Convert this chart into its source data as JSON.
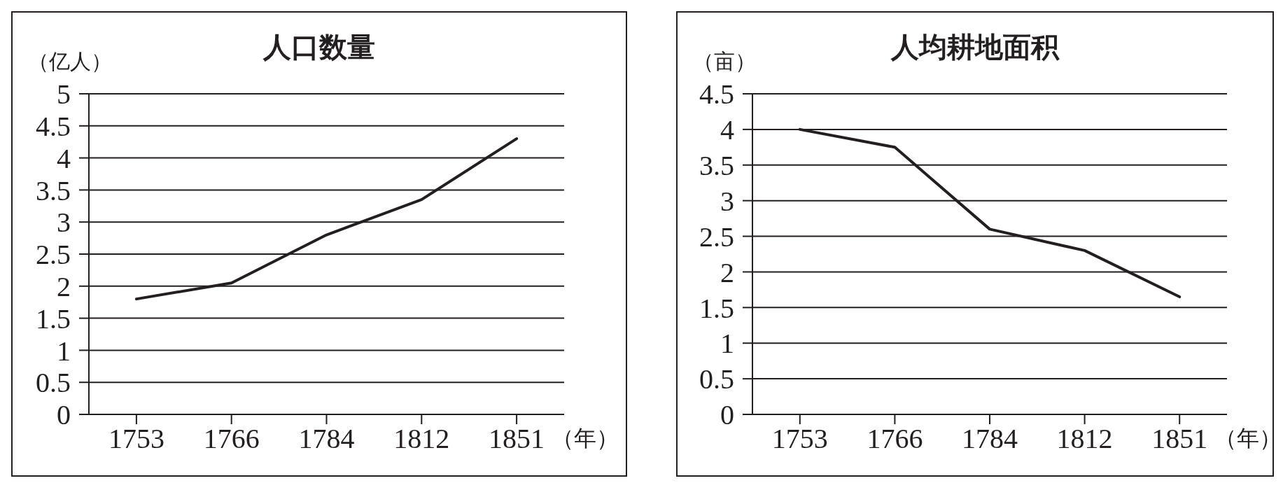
{
  "chart_data": [
    {
      "type": "line",
      "title": "人口数量",
      "ylabel": "（亿人）",
      "xlabel": "（年）",
      "categories": [
        "1753",
        "1766",
        "1784",
        "1812",
        "1851"
      ],
      "values": [
        1.8,
        2.05,
        2.8,
        3.35,
        4.3
      ],
      "color": "#231f20",
      "ylim": [
        0,
        5
      ],
      "yticks": [
        0,
        0.5,
        1,
        1.5,
        2,
        2.5,
        3,
        3.5,
        4,
        4.5,
        5
      ],
      "grid": "y",
      "marker": "none"
    },
    {
      "type": "line",
      "title": "人均耕地面积",
      "ylabel": "（亩）",
      "xlabel": "（年）",
      "categories": [
        "1753",
        "1766",
        "1784",
        "1812",
        "1851"
      ],
      "values": [
        4,
        3.75,
        2.6,
        2.3,
        1.65
      ],
      "color": "#231f20",
      "ylim": [
        0,
        4.5
      ],
      "yticks": [
        0,
        0.5,
        1,
        1.5,
        2,
        2.5,
        3,
        3.5,
        4,
        4.5
      ],
      "grid": "y",
      "marker": "none"
    }
  ]
}
